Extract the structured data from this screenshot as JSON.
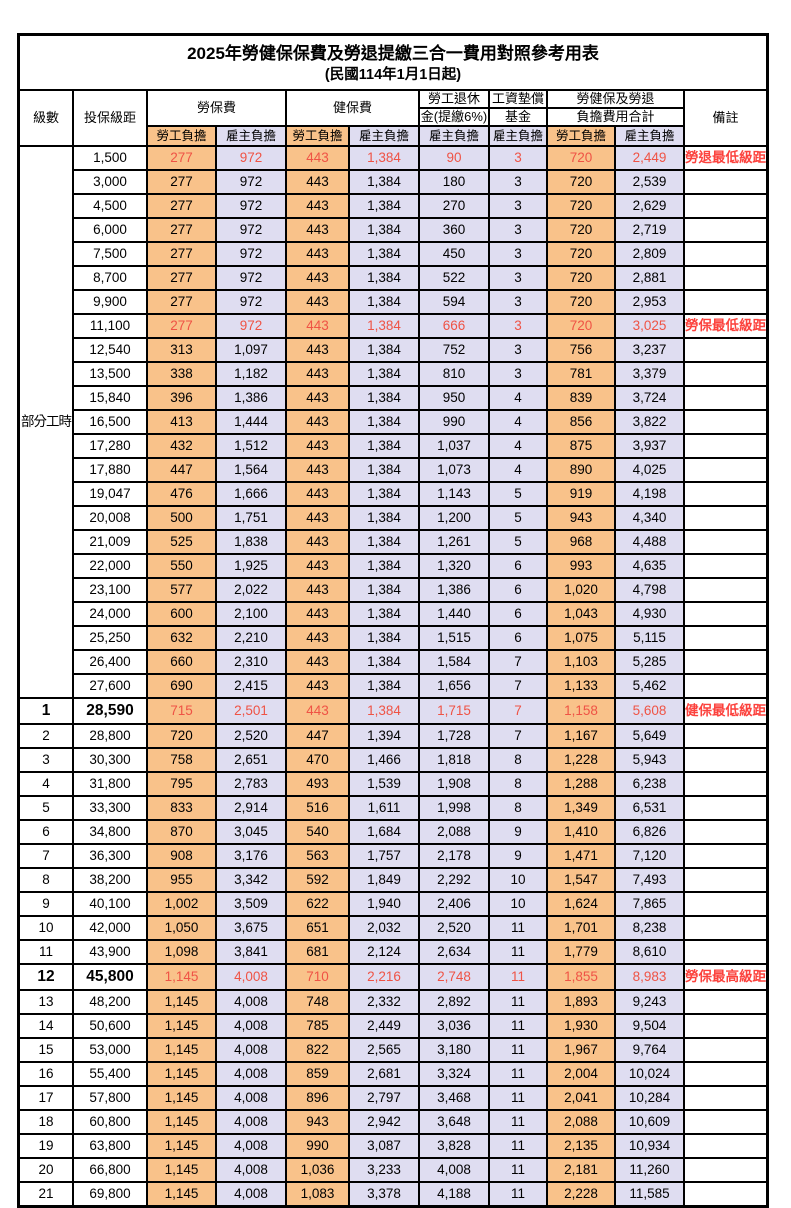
{
  "title": "2025年勞健保保費及勞退提繳三合一費用對照參考用表",
  "subtitle": "(民國114年1月1日起)",
  "columns": {
    "level": "級數",
    "bracket": "投保級距",
    "labor": "勞保費",
    "health": "健保費",
    "pension_l1": "勞工退休",
    "pension_l2": "金(提繳6%)",
    "wage_l1": "工資墊償",
    "wage_l2": "基金",
    "total_l1": "勞健保及勞退",
    "total_l2": "負擔費用合計",
    "remark": "備註",
    "employee": "勞工負擔",
    "employer": "雇主負擔"
  },
  "part_time": {
    "label": "部分工時",
    "rowspan": 23
  },
  "colors": {
    "employee_bg": "#f9c28a",
    "employer_bg": "#dfddf1",
    "highlight_text": "#ef5345",
    "remark_text": "#fc423d",
    "border": "#000000"
  },
  "rows": [
    [
      "",
      "1,500",
      "277",
      "972",
      "443",
      "1,384",
      "90",
      "3",
      "720",
      "2,449",
      "勞退最低級距",
      "h"
    ],
    [
      "",
      "3,000",
      "277",
      "972",
      "443",
      "1,384",
      "180",
      "3",
      "720",
      "2,539",
      "",
      ""
    ],
    [
      "",
      "4,500",
      "277",
      "972",
      "443",
      "1,384",
      "270",
      "3",
      "720",
      "2,629",
      "",
      ""
    ],
    [
      "",
      "6,000",
      "277",
      "972",
      "443",
      "1,384",
      "360",
      "3",
      "720",
      "2,719",
      "",
      ""
    ],
    [
      "",
      "7,500",
      "277",
      "972",
      "443",
      "1,384",
      "450",
      "3",
      "720",
      "2,809",
      "",
      ""
    ],
    [
      "",
      "8,700",
      "277",
      "972",
      "443",
      "1,384",
      "522",
      "3",
      "720",
      "2,881",
      "",
      ""
    ],
    [
      "",
      "9,900",
      "277",
      "972",
      "443",
      "1,384",
      "594",
      "3",
      "720",
      "2,953",
      "",
      ""
    ],
    [
      "",
      "11,100",
      "277",
      "972",
      "443",
      "1,384",
      "666",
      "3",
      "720",
      "3,025",
      "勞保最低級距",
      "h"
    ],
    [
      "",
      "12,540",
      "313",
      "1,097",
      "443",
      "1,384",
      "752",
      "3",
      "756",
      "3,237",
      "",
      ""
    ],
    [
      "",
      "13,500",
      "338",
      "1,182",
      "443",
      "1,384",
      "810",
      "3",
      "781",
      "3,379",
      "",
      ""
    ],
    [
      "",
      "15,840",
      "396",
      "1,386",
      "443",
      "1,384",
      "950",
      "4",
      "839",
      "3,724",
      "",
      ""
    ],
    [
      "",
      "16,500",
      "413",
      "1,444",
      "443",
      "1,384",
      "990",
      "4",
      "856",
      "3,822",
      "",
      ""
    ],
    [
      "",
      "17,280",
      "432",
      "1,512",
      "443",
      "1,384",
      "1,037",
      "4",
      "875",
      "3,937",
      "",
      ""
    ],
    [
      "",
      "17,880",
      "447",
      "1,564",
      "443",
      "1,384",
      "1,073",
      "4",
      "890",
      "4,025",
      "",
      ""
    ],
    [
      "",
      "19,047",
      "476",
      "1,666",
      "443",
      "1,384",
      "1,143",
      "5",
      "919",
      "4,198",
      "",
      ""
    ],
    [
      "",
      "20,008",
      "500",
      "1,751",
      "443",
      "1,384",
      "1,200",
      "5",
      "943",
      "4,340",
      "",
      ""
    ],
    [
      "",
      "21,009",
      "525",
      "1,838",
      "443",
      "1,384",
      "1,261",
      "5",
      "968",
      "4,488",
      "",
      ""
    ],
    [
      "",
      "22,000",
      "550",
      "1,925",
      "443",
      "1,384",
      "1,320",
      "6",
      "993",
      "4,635",
      "",
      ""
    ],
    [
      "",
      "23,100",
      "577",
      "2,022",
      "443",
      "1,384",
      "1,386",
      "6",
      "1,020",
      "4,798",
      "",
      ""
    ],
    [
      "",
      "24,000",
      "600",
      "2,100",
      "443",
      "1,384",
      "1,440",
      "6",
      "1,043",
      "4,930",
      "",
      ""
    ],
    [
      "",
      "25,250",
      "632",
      "2,210",
      "443",
      "1,384",
      "1,515",
      "6",
      "1,075",
      "5,115",
      "",
      ""
    ],
    [
      "",
      "26,400",
      "660",
      "2,310",
      "443",
      "1,384",
      "1,584",
      "7",
      "1,103",
      "5,285",
      "",
      ""
    ],
    [
      "",
      "27,600",
      "690",
      "2,415",
      "443",
      "1,384",
      "1,656",
      "7",
      "1,133",
      "5,462",
      "",
      ""
    ],
    [
      "1",
      "28,590",
      "715",
      "2,501",
      "443",
      "1,384",
      "1,715",
      "7",
      "1,158",
      "5,608",
      "健保最低級距",
      "hm"
    ],
    [
      "2",
      "28,800",
      "720",
      "2,520",
      "447",
      "1,394",
      "1,728",
      "7",
      "1,167",
      "5,649",
      "",
      ""
    ],
    [
      "3",
      "30,300",
      "758",
      "2,651",
      "470",
      "1,466",
      "1,818",
      "8",
      "1,228",
      "5,943",
      "",
      ""
    ],
    [
      "4",
      "31,800",
      "795",
      "2,783",
      "493",
      "1,539",
      "1,908",
      "8",
      "1,288",
      "6,238",
      "",
      ""
    ],
    [
      "5",
      "33,300",
      "833",
      "2,914",
      "516",
      "1,611",
      "1,998",
      "8",
      "1,349",
      "6,531",
      "",
      ""
    ],
    [
      "6",
      "34,800",
      "870",
      "3,045",
      "540",
      "1,684",
      "2,088",
      "9",
      "1,410",
      "6,826",
      "",
      ""
    ],
    [
      "7",
      "36,300",
      "908",
      "3,176",
      "563",
      "1,757",
      "2,178",
      "9",
      "1,471",
      "7,120",
      "",
      ""
    ],
    [
      "8",
      "38,200",
      "955",
      "3,342",
      "592",
      "1,849",
      "2,292",
      "10",
      "1,547",
      "7,493",
      "",
      ""
    ],
    [
      "9",
      "40,100",
      "1,002",
      "3,509",
      "622",
      "1,940",
      "2,406",
      "10",
      "1,624",
      "7,865",
      "",
      ""
    ],
    [
      "10",
      "42,000",
      "1,050",
      "3,675",
      "651",
      "2,032",
      "2,520",
      "11",
      "1,701",
      "8,238",
      "",
      ""
    ],
    [
      "11",
      "43,900",
      "1,098",
      "3,841",
      "681",
      "2,124",
      "2,634",
      "11",
      "1,779",
      "8,610",
      "",
      ""
    ],
    [
      "12",
      "45,800",
      "1,145",
      "4,008",
      "710",
      "2,216",
      "2,748",
      "11",
      "1,855",
      "8,983",
      "勞保最高級距",
      "hm"
    ],
    [
      "13",
      "48,200",
      "1,145",
      "4,008",
      "748",
      "2,332",
      "2,892",
      "11",
      "1,893",
      "9,243",
      "",
      ""
    ],
    [
      "14",
      "50,600",
      "1,145",
      "4,008",
      "785",
      "2,449",
      "3,036",
      "11",
      "1,930",
      "9,504",
      "",
      ""
    ],
    [
      "15",
      "53,000",
      "1,145",
      "4,008",
      "822",
      "2,565",
      "3,180",
      "11",
      "1,967",
      "9,764",
      "",
      ""
    ],
    [
      "16",
      "55,400",
      "1,145",
      "4,008",
      "859",
      "2,681",
      "3,324",
      "11",
      "2,004",
      "10,024",
      "",
      ""
    ],
    [
      "17",
      "57,800",
      "1,145",
      "4,008",
      "896",
      "2,797",
      "3,468",
      "11",
      "2,041",
      "10,284",
      "",
      ""
    ],
    [
      "18",
      "60,800",
      "1,145",
      "4,008",
      "943",
      "2,942",
      "3,648",
      "11",
      "2,088",
      "10,609",
      "",
      ""
    ],
    [
      "19",
      "63,800",
      "1,145",
      "4,008",
      "990",
      "3,087",
      "3,828",
      "11",
      "2,135",
      "10,934",
      "",
      ""
    ],
    [
      "20",
      "66,800",
      "1,145",
      "4,008",
      "1,036",
      "3,233",
      "4,008",
      "11",
      "2,181",
      "11,260",
      "",
      ""
    ],
    [
      "21",
      "69,800",
      "1,145",
      "4,008",
      "1,083",
      "3,378",
      "4,188",
      "11",
      "2,228",
      "11,585",
      "",
      ""
    ]
  ]
}
